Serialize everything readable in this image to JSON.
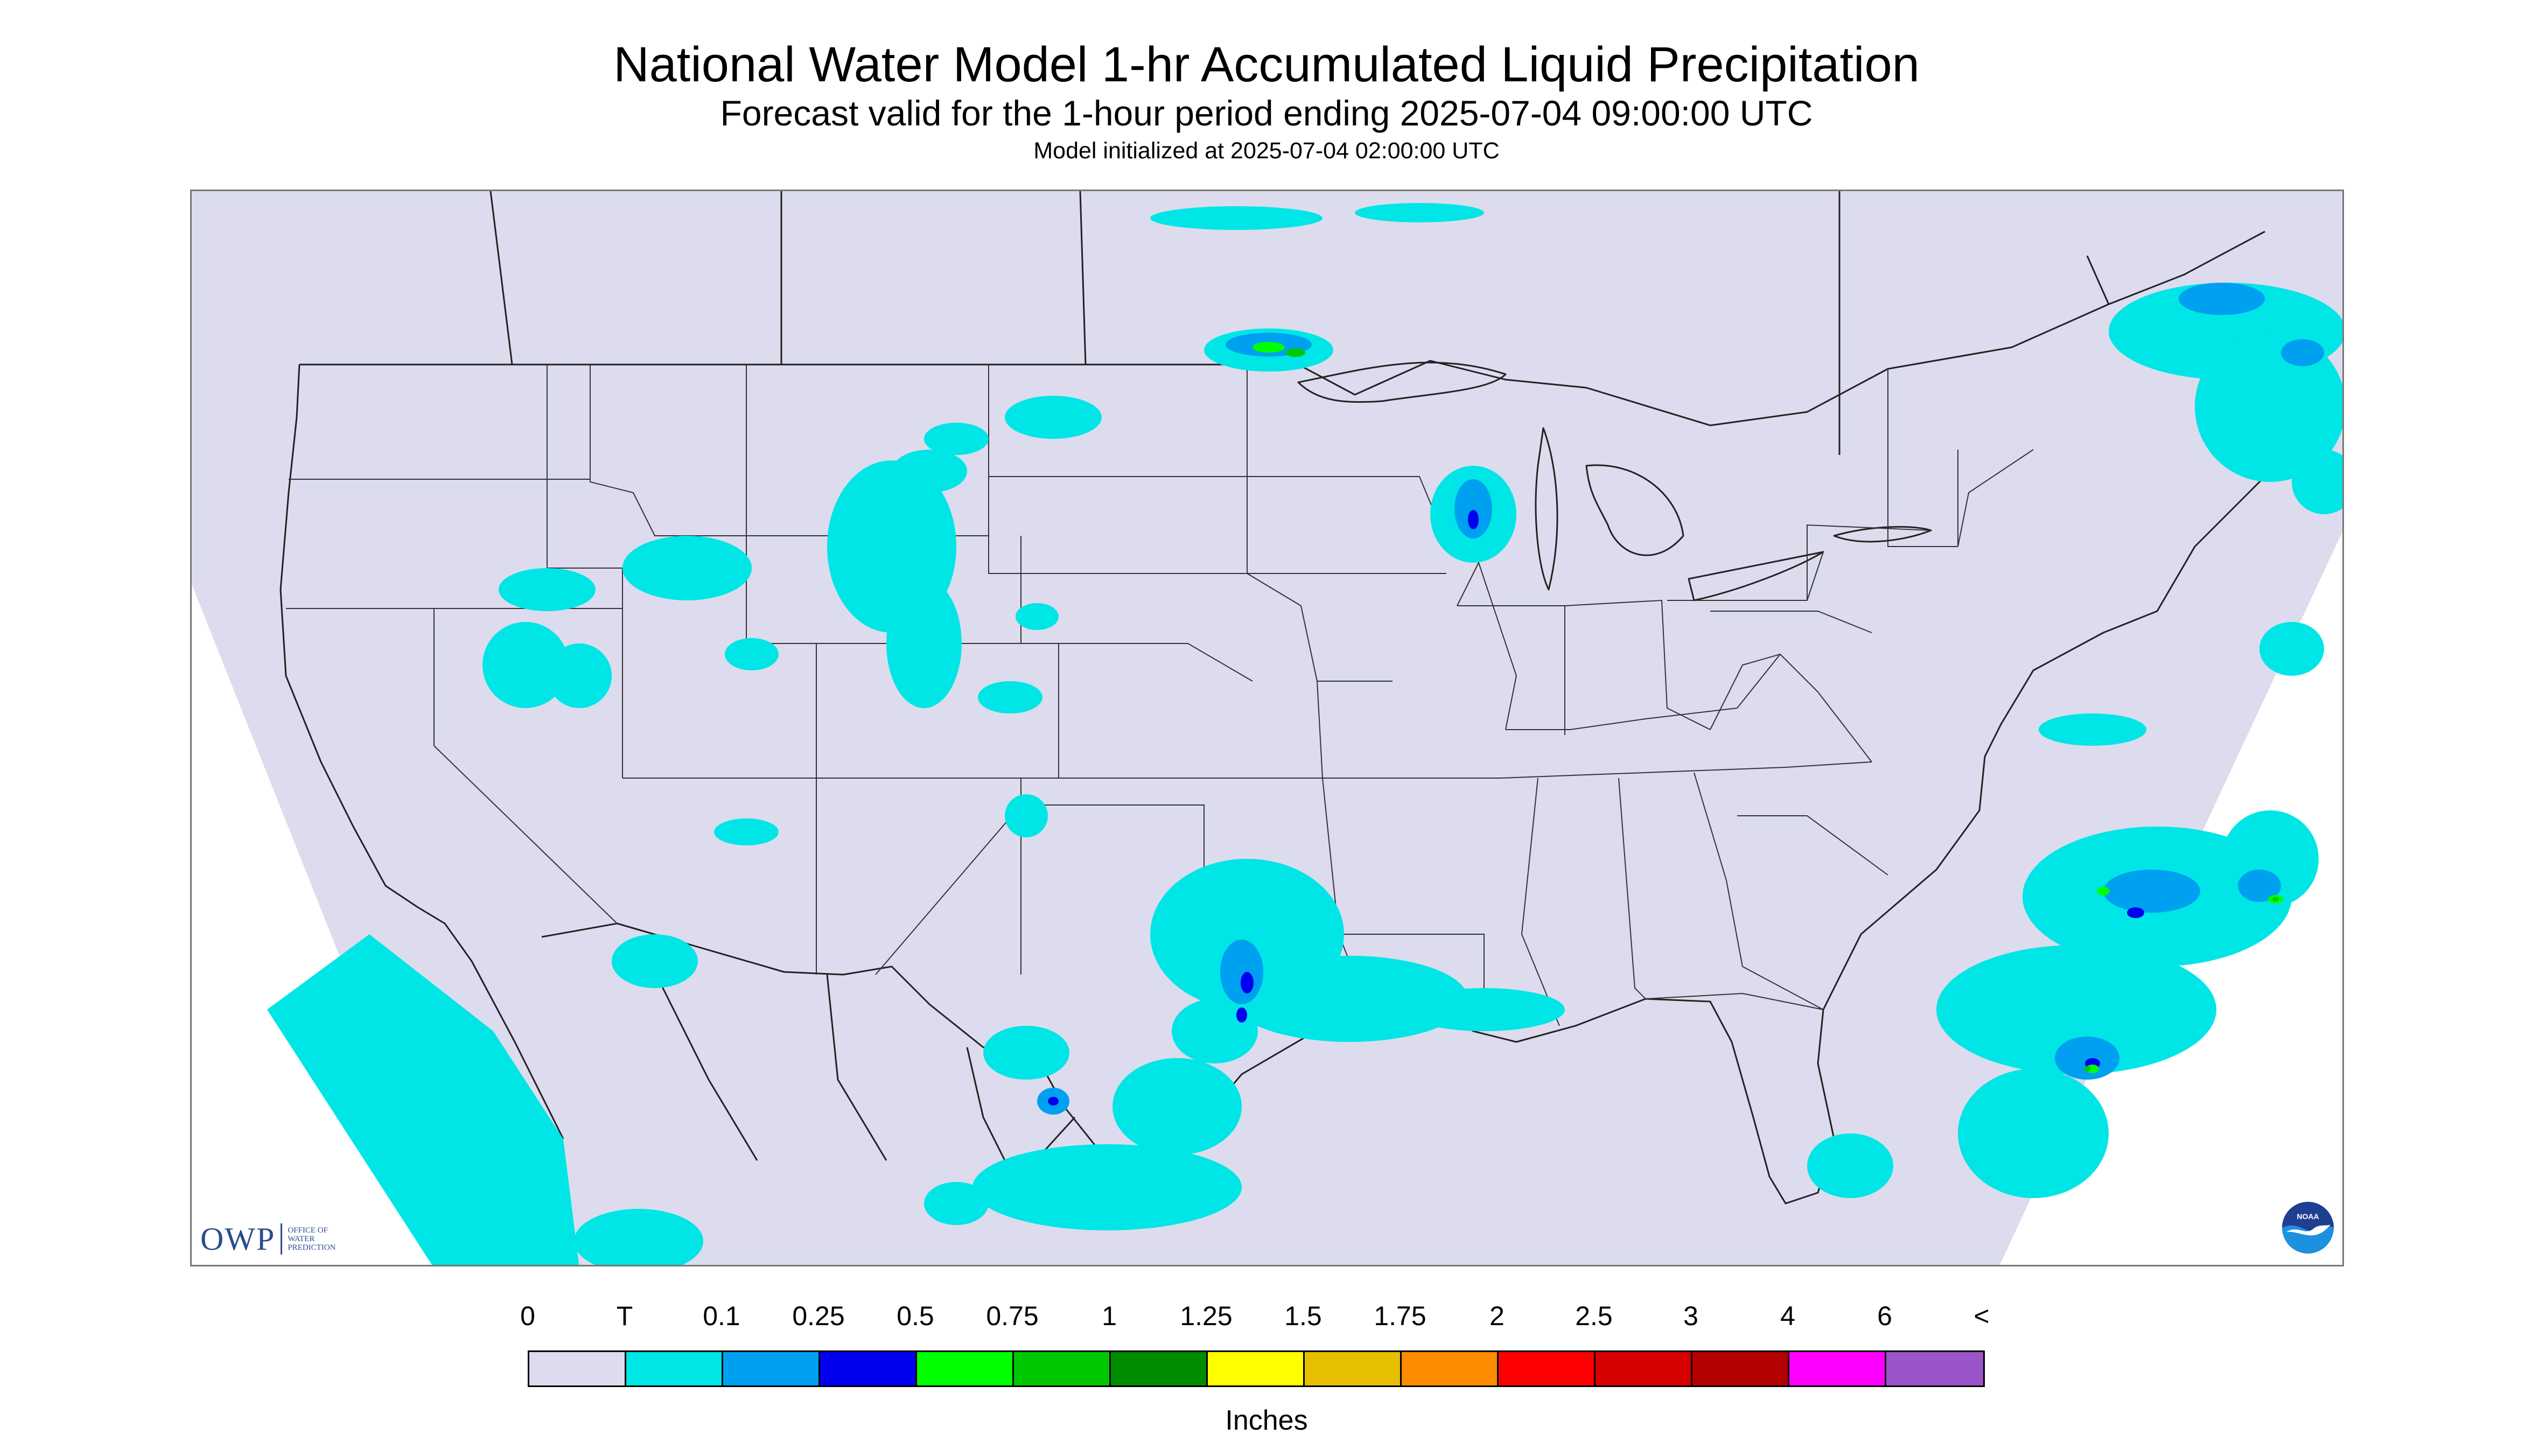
{
  "header": {
    "title": "National Water Model 1-hr Accumulated Liquid Precipitation",
    "subtitle": "Forecast valid for the 1-hour period ending 2025-07-04 09:00:00 UTC",
    "init_line": "Model initialized at 2025-07-04 02:00:00 UTC"
  },
  "map": {
    "region": "Continental United States",
    "domain_color": "#dcdcee",
    "boundary_color": "#222222",
    "precip_regions": [
      {
        "area": "Southwest Canada / British Columbia",
        "level": "T"
      },
      {
        "area": "Idaho / Wyoming",
        "level": "T"
      },
      {
        "area": "Colorado / Wyoming",
        "level": "T"
      },
      {
        "area": "Minnesota arrowhead / Lake Superior",
        "level": "0.75"
      },
      {
        "area": "Wisconsin",
        "level": "0.5"
      },
      {
        "area": "Texas Hill Country",
        "level": "0.5"
      },
      {
        "area": "Texas Gulf Coast",
        "level": "T"
      },
      {
        "area": "Northern Mexico",
        "level": "0.25"
      },
      {
        "area": "Baja California / Gulf of California",
        "level": "T"
      },
      {
        "area": "Atlantic offshore North Carolina",
        "level": "0.75"
      },
      {
        "area": "Atlantic offshore Florida / Georgia",
        "level": "0.75"
      },
      {
        "area": "Quebec / Northeast",
        "level": "0.1"
      }
    ]
  },
  "logos": {
    "owp": {
      "mark": "OWP",
      "text": [
        "OFFICE OF",
        "WATER",
        "PREDICTION"
      ]
    },
    "noaa": {
      "text": "NOAA",
      "colors": {
        "top": "#1f3f92",
        "bottom": "#1e90e0",
        "gull": "#ffffff"
      }
    }
  },
  "legend": {
    "labels": [
      "0",
      "T",
      "0.1",
      "0.25",
      "0.5",
      "0.75",
      "1",
      "1.25",
      "1.5",
      "1.75",
      "2",
      "2.5",
      "3",
      "4",
      "6",
      "<"
    ],
    "colors": [
      "#dcdcee",
      "#00e5e5",
      "#00a0f0",
      "#0000ee",
      "#00ff00",
      "#00c800",
      "#008c00",
      "#ffff00",
      "#e6c000",
      "#ff8c00",
      "#ff0000",
      "#d60000",
      "#b40000",
      "#ff00ff",
      "#9955c9"
    ],
    "units": "Inches"
  }
}
